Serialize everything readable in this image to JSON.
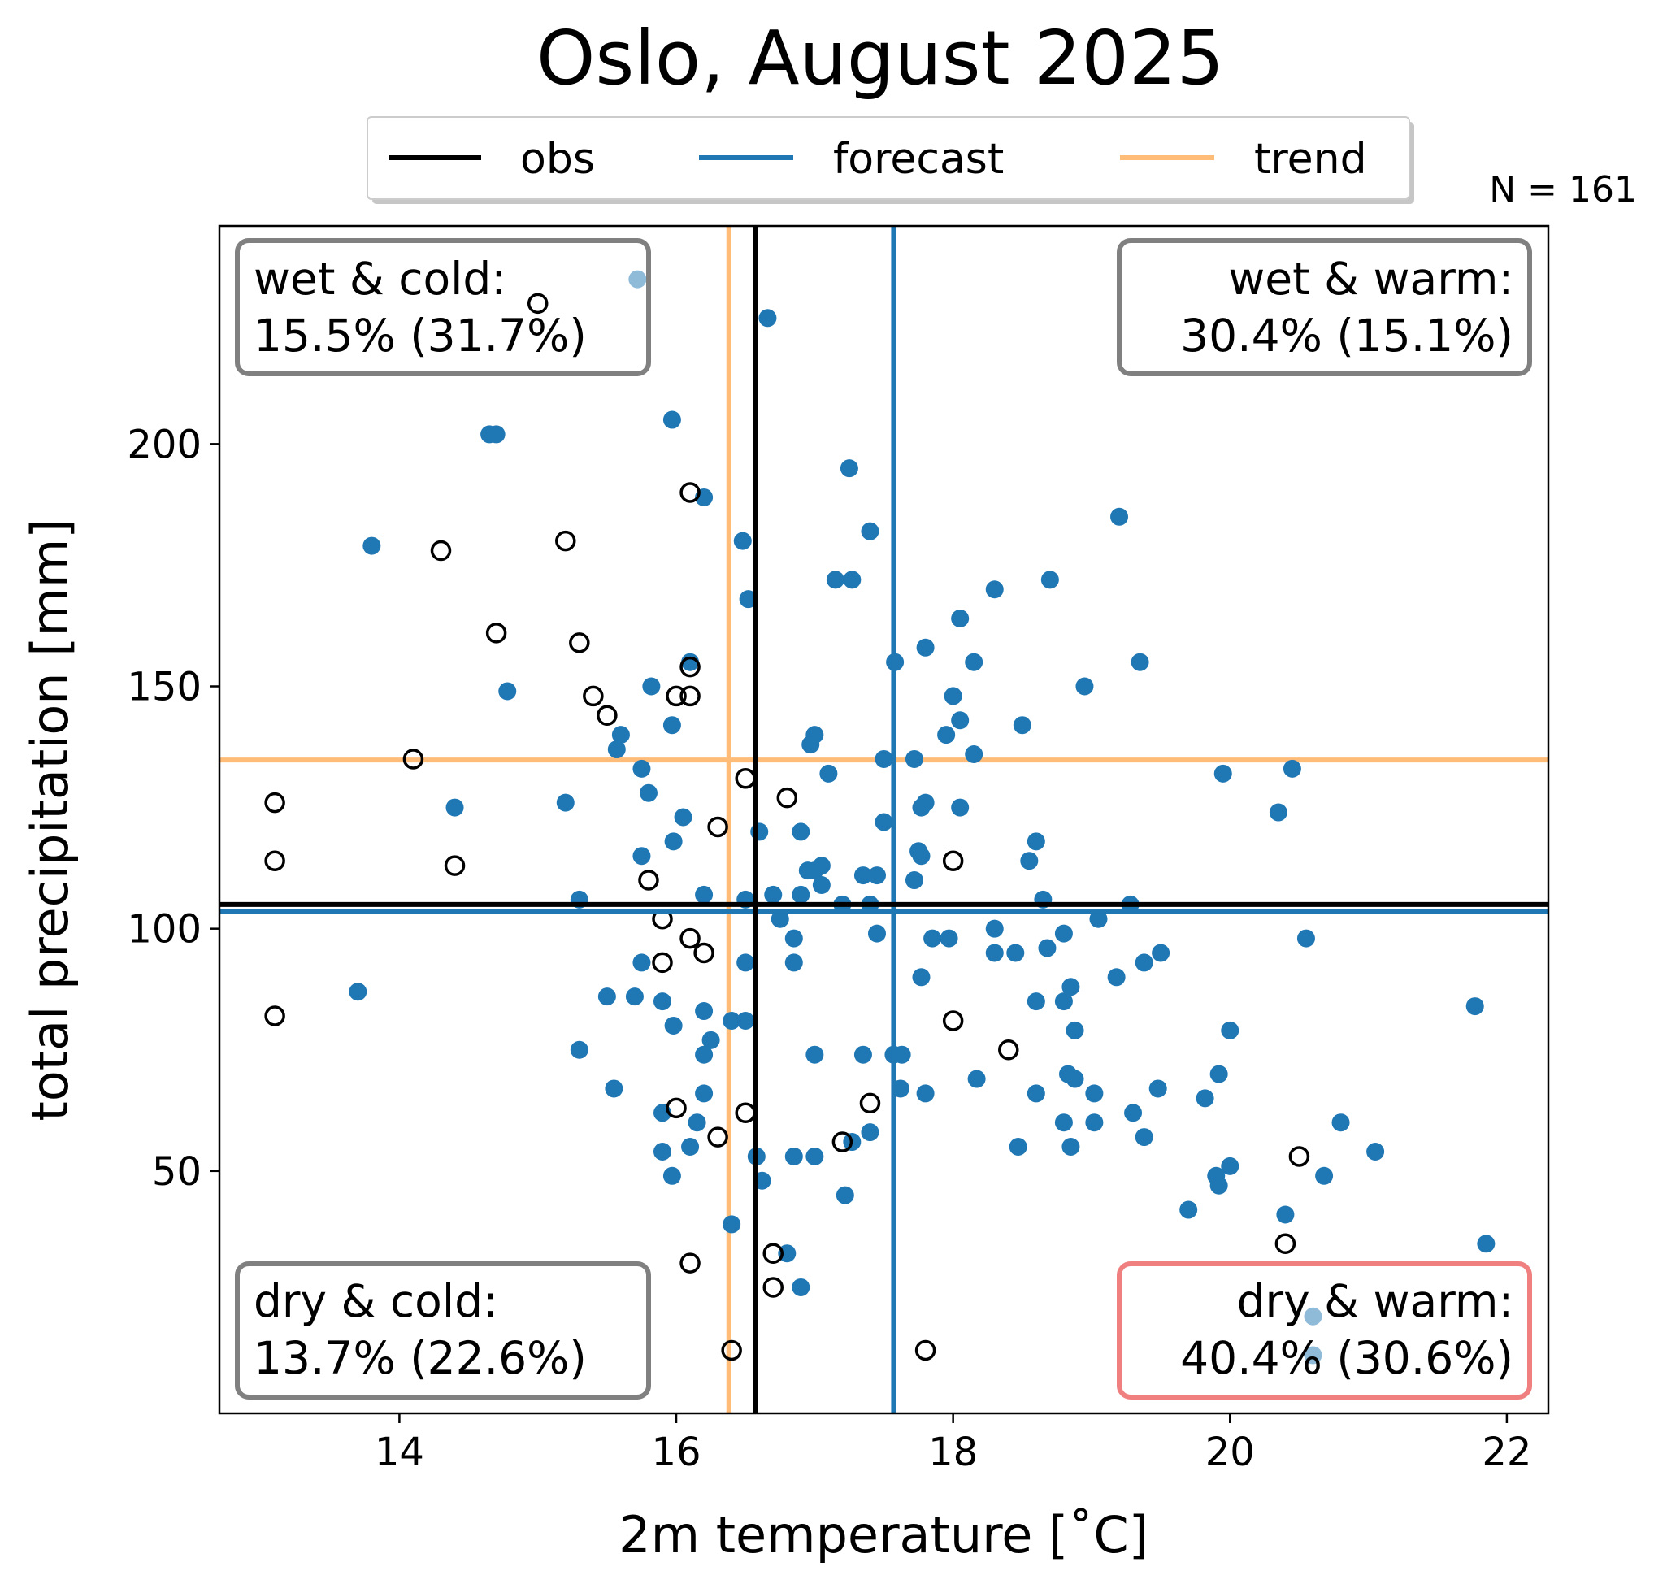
{
  "chart_data": {
    "type": "scatter",
    "title": "Oslo, August 2025",
    "xlabel": "2m temperature [˚C]",
    "ylabel": "total precipitation [mm]",
    "xlim": [
      12.7,
      22.3
    ],
    "ylim": [
      0,
      245
    ],
    "xticks": [
      14,
      16,
      18,
      20,
      22
    ],
    "yticks": [
      50,
      100,
      150,
      200
    ],
    "count_label": "N = 161",
    "colors": {
      "obs": "#000000",
      "forecast": "#1f77b4",
      "trend": "#ffbb78",
      "box_neutral": "#808080",
      "box_highlight": "#f08080"
    },
    "legend": [
      {
        "label": "obs",
        "color": "#000000"
      },
      {
        "label": "forecast",
        "color": "#1f77b4"
      },
      {
        "label": "trend",
        "color": "#ffbb78"
      }
    ],
    "reference_lines": {
      "obs": {
        "x": 16.57,
        "y": 105.0
      },
      "forecast": {
        "x": 17.57,
        "y": 103.6
      },
      "trend": {
        "x": 16.38,
        "y": 134.8
      }
    },
    "quadrants": [
      {
        "name": "wet-cold",
        "line1": "wet & cold:",
        "line2": "15.5% (31.7%)",
        "highlight": false
      },
      {
        "name": "wet-warm",
        "line1": "wet & warm:",
        "line2": "30.4% (15.1%)",
        "highlight": false
      },
      {
        "name": "dry-cold",
        "line1": "dry & cold:",
        "line2": "13.7% (22.6%)",
        "highlight": false
      },
      {
        "name": "dry-warm",
        "line1": "dry & warm:",
        "line2": "40.4% (30.6%)",
        "highlight": true
      }
    ],
    "series": [
      {
        "name": "forecast members",
        "style": "filled",
        "points": [
          [
            16.66,
            226
          ],
          [
            15.97,
            205
          ],
          [
            14.65,
            202
          ],
          [
            14.7,
            202
          ],
          [
            17.25,
            195
          ],
          [
            16.2,
            189
          ],
          [
            19.2,
            185
          ],
          [
            17.4,
            182
          ],
          [
            16.48,
            180
          ],
          [
            13.8,
            179
          ],
          [
            17.15,
            172
          ],
          [
            17.27,
            172
          ],
          [
            18.7,
            172
          ],
          [
            18.3,
            170
          ],
          [
            16.52,
            168
          ],
          [
            18.05,
            164
          ],
          [
            17.8,
            158
          ],
          [
            17.58,
            155
          ],
          [
            18.15,
            155
          ],
          [
            19.35,
            155
          ],
          [
            16.1,
            155
          ],
          [
            18.95,
            150
          ],
          [
            15.82,
            150
          ],
          [
            14.78,
            149
          ],
          [
            18.0,
            148
          ],
          [
            18.05,
            143
          ],
          [
            18.5,
            142
          ],
          [
            15.97,
            142
          ],
          [
            17.0,
            140
          ],
          [
            15.6,
            140
          ],
          [
            17.95,
            140
          ],
          [
            16.97,
            138
          ],
          [
            15.57,
            137
          ],
          [
            17.5,
            135
          ],
          [
            17.72,
            135
          ],
          [
            18.15,
            136
          ],
          [
            15.75,
            133
          ],
          [
            17.1,
            132
          ],
          [
            19.95,
            132
          ],
          [
            20.45,
            133
          ],
          [
            15.8,
            128
          ],
          [
            17.8,
            126
          ],
          [
            17.77,
            125
          ],
          [
            18.05,
            125
          ],
          [
            14.4,
            125
          ],
          [
            15.2,
            126
          ],
          [
            20.35,
            124
          ],
          [
            16.05,
            123
          ],
          [
            17.5,
            122
          ],
          [
            16.9,
            120
          ],
          [
            16.6,
            120
          ],
          [
            18.6,
            118
          ],
          [
            15.98,
            118
          ],
          [
            17.75,
            116
          ],
          [
            15.75,
            115
          ],
          [
            17.77,
            115
          ],
          [
            18.55,
            114
          ],
          [
            17.0,
            112
          ],
          [
            17.05,
            113
          ],
          [
            16.95,
            112
          ],
          [
            17.35,
            111
          ],
          [
            17.45,
            111
          ],
          [
            17.05,
            109
          ],
          [
            17.72,
            110
          ],
          [
            16.7,
            107
          ],
          [
            16.2,
            107
          ],
          [
            16.9,
            107
          ],
          [
            15.3,
            106
          ],
          [
            16.5,
            106
          ],
          [
            18.65,
            106
          ],
          [
            17.2,
            105
          ],
          [
            17.4,
            105
          ],
          [
            19.28,
            105
          ],
          [
            16.75,
            102
          ],
          [
            19.05,
            102
          ],
          [
            16.85,
            98
          ],
          [
            17.45,
            99
          ],
          [
            18.3,
            100
          ],
          [
            18.8,
            99
          ],
          [
            17.85,
            98
          ],
          [
            17.97,
            98
          ],
          [
            20.55,
            98
          ],
          [
            18.68,
            96
          ],
          [
            18.3,
            95
          ],
          [
            18.45,
            95
          ],
          [
            19.5,
            95
          ],
          [
            16.5,
            93
          ],
          [
            16.85,
            93
          ],
          [
            15.75,
            93
          ],
          [
            19.38,
            93
          ],
          [
            17.77,
            90
          ],
          [
            19.18,
            90
          ],
          [
            13.7,
            87
          ],
          [
            18.85,
            88
          ],
          [
            15.5,
            86
          ],
          [
            15.7,
            86
          ],
          [
            15.9,
            85
          ],
          [
            18.6,
            85
          ],
          [
            18.8,
            85
          ],
          [
            21.77,
            84
          ],
          [
            16.2,
            83
          ],
          [
            15.98,
            80
          ],
          [
            16.5,
            81
          ],
          [
            16.4,
            81
          ],
          [
            18.88,
            79
          ],
          [
            20.0,
            79
          ],
          [
            16.25,
            77
          ],
          [
            16.2,
            74
          ],
          [
            17.0,
            74
          ],
          [
            17.35,
            74
          ],
          [
            17.57,
            74
          ],
          [
            17.63,
            74
          ],
          [
            15.3,
            75
          ],
          [
            18.83,
            70
          ],
          [
            19.92,
            70
          ],
          [
            18.88,
            69
          ],
          [
            18.17,
            69
          ],
          [
            15.55,
            67
          ],
          [
            17.62,
            67
          ],
          [
            19.48,
            67
          ],
          [
            19.02,
            66
          ],
          [
            16.2,
            66
          ],
          [
            17.8,
            66
          ],
          [
            18.6,
            66
          ],
          [
            19.82,
            65
          ],
          [
            15.9,
            62
          ],
          [
            19.3,
            62
          ],
          [
            16.15,
            60
          ],
          [
            19.02,
            60
          ],
          [
            18.8,
            60
          ],
          [
            20.8,
            60
          ],
          [
            17.4,
            58
          ],
          [
            19.38,
            57
          ],
          [
            15.9,
            54
          ],
          [
            16.1,
            55
          ],
          [
            18.47,
            55
          ],
          [
            18.85,
            55
          ],
          [
            21.05,
            54
          ],
          [
            16.58,
            53
          ],
          [
            16.85,
            53
          ],
          [
            17.0,
            53
          ],
          [
            17.27,
            56
          ],
          [
            20.0,
            51
          ],
          [
            19.9,
            49
          ],
          [
            15.97,
            49
          ],
          [
            16.62,
            48
          ],
          [
            19.92,
            47
          ],
          [
            20.68,
            49
          ],
          [
            17.22,
            45
          ],
          [
            19.7,
            42
          ],
          [
            20.4,
            41
          ],
          [
            16.4,
            39
          ],
          [
            21.85,
            35
          ],
          [
            16.8,
            33
          ],
          [
            16.9,
            26
          ]
        ]
      },
      {
        "name": "forecast members (outside box)",
        "style": "faded",
        "points": [
          [
            15.72,
            234
          ],
          [
            20.6,
            20
          ],
          [
            20.6,
            12
          ]
        ]
      },
      {
        "name": "observed years",
        "style": "open",
        "points": [
          [
            15.0,
            229
          ],
          [
            16.1,
            190
          ],
          [
            14.3,
            178
          ],
          [
            15.2,
            180
          ],
          [
            14.7,
            161
          ],
          [
            15.3,
            159
          ],
          [
            16.1,
            154
          ],
          [
            16.0,
            148
          ],
          [
            16.1,
            148
          ],
          [
            15.4,
            148
          ],
          [
            15.5,
            144
          ],
          [
            14.1,
            135
          ],
          [
            16.5,
            131
          ],
          [
            16.8,
            127
          ],
          [
            13.1,
            126
          ],
          [
            16.3,
            121
          ],
          [
            13.1,
            114
          ],
          [
            14.4,
            113
          ],
          [
            18.0,
            114
          ],
          [
            15.8,
            110
          ],
          [
            15.9,
            102
          ],
          [
            16.1,
            98
          ],
          [
            16.2,
            95
          ],
          [
            15.9,
            93
          ],
          [
            18.0,
            81
          ],
          [
            13.1,
            82
          ],
          [
            18.4,
            75
          ],
          [
            17.4,
            64
          ],
          [
            16.0,
            63
          ],
          [
            16.5,
            62
          ],
          [
            16.3,
            57
          ],
          [
            17.2,
            56
          ],
          [
            20.5,
            53
          ],
          [
            20.4,
            35
          ],
          [
            16.7,
            33
          ],
          [
            16.1,
            31
          ],
          [
            16.7,
            26
          ],
          [
            16.4,
            13
          ],
          [
            17.8,
            13
          ]
        ]
      }
    ]
  }
}
